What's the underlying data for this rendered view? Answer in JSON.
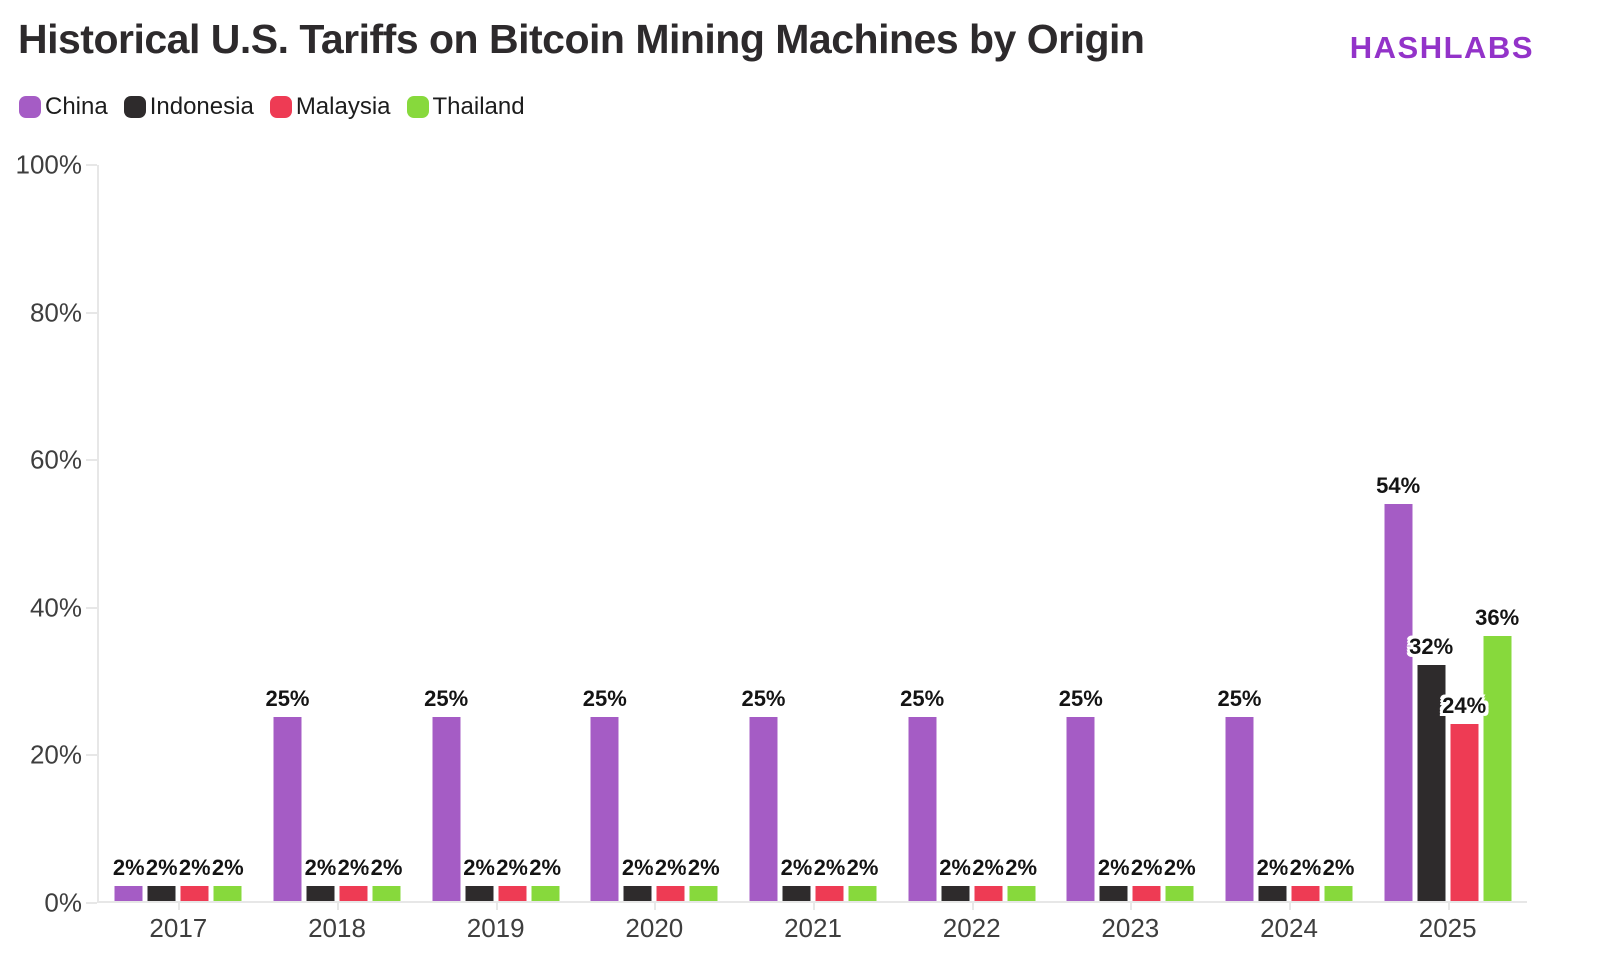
{
  "header": {
    "title": "Historical U.S. Tariffs on Bitcoin Mining Machines by Origin",
    "brand": "HASHLABS",
    "brand_color": "#9333c9"
  },
  "chart_data": {
    "type": "bar",
    "title": "Historical U.S. Tariffs on Bitcoin Mining Machines by Origin",
    "categories": [
      "2017",
      "2018",
      "2019",
      "2020",
      "2021",
      "2022",
      "2023",
      "2024",
      "2025"
    ],
    "series": [
      {
        "name": "China",
        "color": "#a55cc5",
        "values": [
          2,
          25,
          25,
          25,
          25,
          25,
          25,
          25,
          54
        ]
      },
      {
        "name": "Indonesia",
        "color": "#2e2b2c",
        "values": [
          2,
          2,
          2,
          2,
          2,
          2,
          2,
          2,
          32
        ]
      },
      {
        "name": "Malaysia",
        "color": "#ee3b54",
        "values": [
          2,
          2,
          2,
          2,
          2,
          2,
          2,
          2,
          24
        ]
      },
      {
        "name": "Thailand",
        "color": "#87d93c",
        "values": [
          2,
          2,
          2,
          2,
          2,
          2,
          2,
          2,
          36
        ]
      }
    ],
    "xlabel": "",
    "ylabel": "",
    "ylim": [
      0,
      100
    ],
    "y_ticks": [
      {
        "label": "0%",
        "value": 0
      },
      {
        "label": "20%",
        "value": 20
      },
      {
        "label": "40%",
        "value": 40
      },
      {
        "label": "60%",
        "value": 60
      },
      {
        "label": "80%",
        "value": 80
      },
      {
        "label": "100%",
        "value": 100
      }
    ],
    "value_label_suffix": "%",
    "grid": false,
    "legend_position": "top-left"
  }
}
